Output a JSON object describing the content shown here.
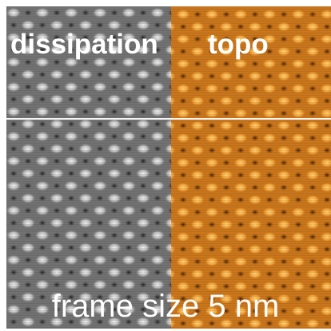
{
  "labels": {
    "left_panel": "dissipation",
    "right_panel": "topo",
    "caption": "frame size 5 nm"
  },
  "colors": {
    "left_panel_tint": "#8c8c8c",
    "right_panel_tint": "#d9821f",
    "scan_line": "#f4f4f4"
  }
}
